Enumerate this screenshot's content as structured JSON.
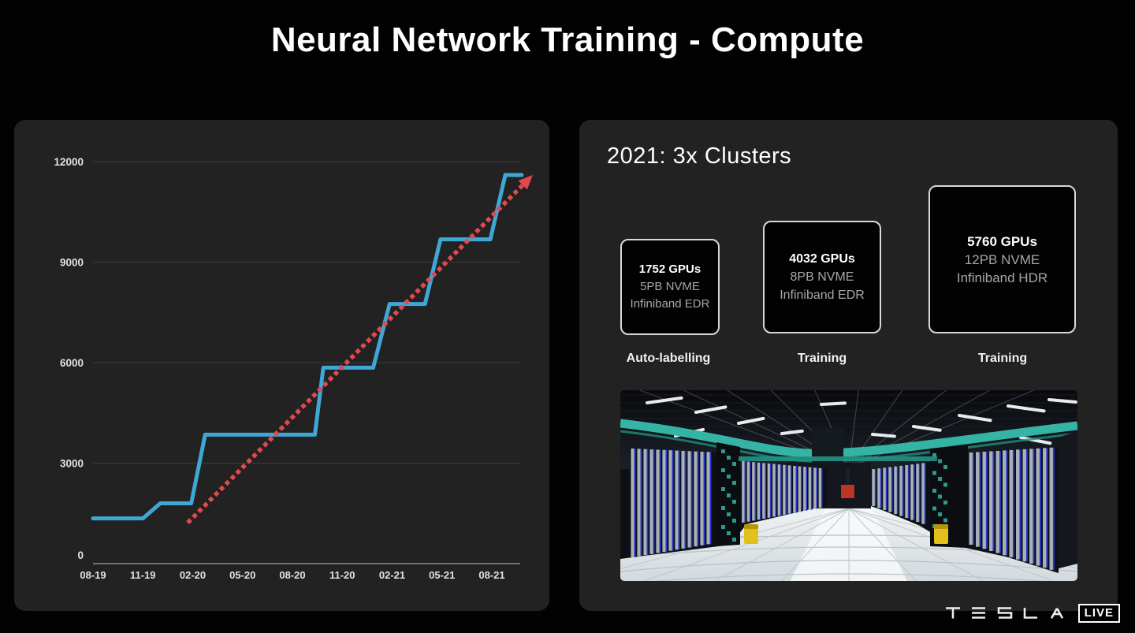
{
  "title": "Neural Network Training - Compute",
  "chart_data": {
    "type": "line",
    "title": "Neural Network Training - Compute (GPU count over time)",
    "x_ticks": [
      "08-19",
      "11-19",
      "02-20",
      "05-20",
      "08-20",
      "11-20",
      "02-21",
      "05-21",
      "08-21"
    ],
    "y_ticks": [
      0,
      3000,
      6000,
      9000,
      12000
    ],
    "ylim": [
      0,
      12000
    ],
    "grid": true,
    "legend": "none",
    "series": [
      {
        "name": "gpu-count-steps",
        "color": "#3fa7d6",
        "style": "step-line",
        "points": [
          [
            0,
            1350
          ],
          [
            1.0,
            1350
          ],
          [
            1.35,
            1800
          ],
          [
            1.97,
            1800
          ],
          [
            2.25,
            3850
          ],
          [
            4.45,
            3850
          ],
          [
            4.62,
            5850
          ],
          [
            5.62,
            5850
          ],
          [
            5.95,
            7750
          ],
          [
            6.66,
            7750
          ],
          [
            6.97,
            9680
          ],
          [
            7.97,
            9680
          ],
          [
            8.27,
            11600
          ],
          [
            8.6,
            11600
          ]
        ]
      },
      {
        "name": "trend-arrow",
        "color": "#e2484f",
        "style": "dotted-arrow",
        "points": [
          [
            1.9,
            1220
          ],
          [
            8.72,
            11450
          ]
        ]
      }
    ]
  },
  "right_panel": {
    "heading": "2021: 3x Clusters",
    "clusters": [
      {
        "line1": "1752 GPUs",
        "line2": "5PB NVME",
        "line3": "Infiniband EDR",
        "caption": "Auto-labelling"
      },
      {
        "line1": "4032 GPUs",
        "line2": "8PB NVME",
        "line3": "Infiniband EDR",
        "caption": "Training"
      },
      {
        "line1": "5760 GPUs",
        "line2": "12PB NVME",
        "line3": "Infiniband HDR",
        "caption": "Training"
      }
    ]
  },
  "footer": {
    "brand": "TESLA",
    "live_label": "LIVE"
  },
  "colors": {
    "background": "#020202",
    "panel": "#212221",
    "line_blue": "#3fa7d6",
    "trend_red": "#e2484f",
    "box_border": "#d8d8d8",
    "secondary_text": "#a6a6a6",
    "teal_tray": "#35b3a4",
    "rack_blue": "#2a3ad2"
  }
}
